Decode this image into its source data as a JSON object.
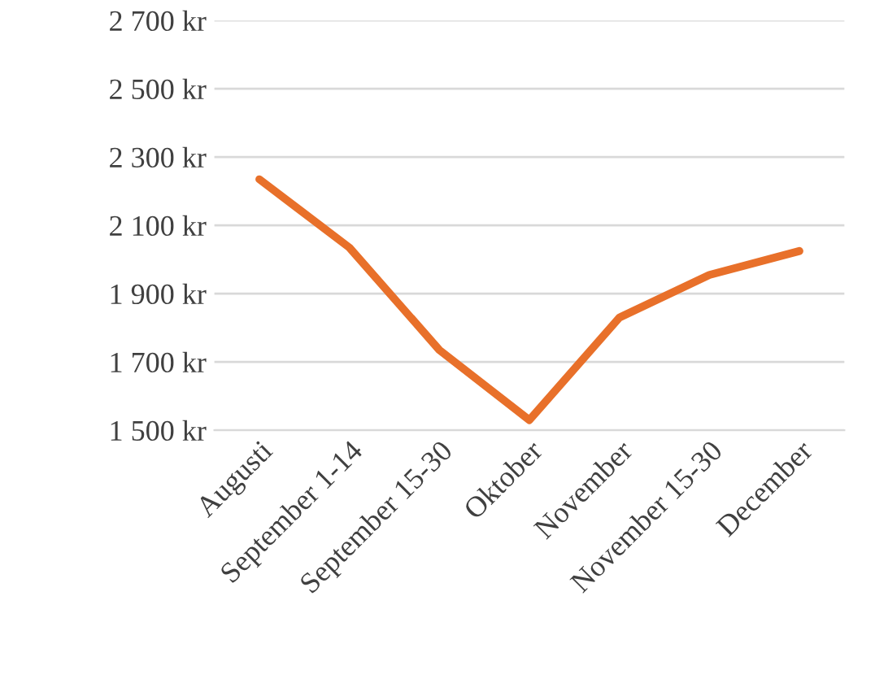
{
  "chart_data": {
    "type": "line",
    "categories": [
      "Augusti",
      "September 1-14",
      "September 15-30",
      "Oktober",
      "November",
      "November 15-30",
      "December"
    ],
    "series": [
      {
        "color": "#e8702a",
        "values": [
          2235,
          2035,
          1735,
          1530,
          1830,
          1955,
          2025
        ]
      }
    ],
    "ylim": [
      1500,
      2700
    ],
    "yticks": [
      {
        "value": 1500,
        "label": "1 500 kr"
      },
      {
        "value": 1700,
        "label": "1 700 kr"
      },
      {
        "value": 1900,
        "label": "1 900 kr"
      },
      {
        "value": 2100,
        "label": "2 100 kr"
      },
      {
        "value": 2300,
        "label": "2 300 kr"
      },
      {
        "value": 2500,
        "label": "2 500 kr"
      },
      {
        "value": 2700,
        "label": "2 700 kr"
      }
    ],
    "grid": "y",
    "legend": false,
    "marker": "none",
    "line_style": "solid"
  }
}
